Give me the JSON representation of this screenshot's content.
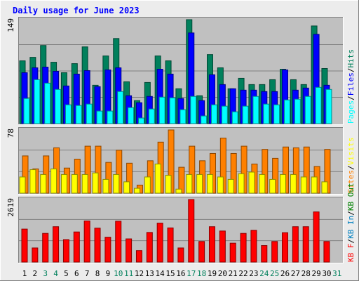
{
  "title": "Daily usage for June 2023",
  "colors": {
    "hits": "#00805c",
    "files": "#0000ff",
    "pages": "#00ffff",
    "visits": "#ffff00",
    "sites": "#ff8000",
    "kbin": "#0080c0",
    "kbout": "#008000",
    "kbf": "#ff0000",
    "weekend_day": "#00805c",
    "weekday": "#000000",
    "title": "#0000ff",
    "panel_bg": "#c0c0c0"
  },
  "chart_data": [
    {
      "type": "bar",
      "panel": "hits-files-pages",
      "axis_max_label": "149",
      "ylim": [
        0,
        149
      ],
      "legend": [
        {
          "text": "Pages",
          "color": "#00ffff"
        },
        {
          "text": "/",
          "color": "#000000"
        },
        {
          "text": "Files",
          "color": "#0000ff"
        },
        {
          "text": "/",
          "color": "#000000"
        },
        {
          "text": "Hits",
          "color": "#00805c"
        }
      ],
      "categories": [
        "1",
        "2",
        "3",
        "4",
        "5",
        "6",
        "7",
        "8",
        "9",
        "10",
        "11",
        "12",
        "13",
        "14",
        "15",
        "16",
        "17",
        "18",
        "19",
        "20",
        "21",
        "22",
        "23",
        "24",
        "25",
        "26",
        "27",
        "28",
        "29",
        "30"
      ],
      "series": [
        {
          "name": "Hits",
          "values": [
            90,
            95,
            112,
            88,
            73,
            86,
            110,
            55,
            97,
            122,
            60,
            33,
            59,
            97,
            90,
            50,
            149,
            40,
            99,
            80,
            50,
            65,
            56,
            56,
            63,
            78,
            63,
            56,
            140,
            79
          ]
        },
        {
          "name": "Files",
          "values": [
            73,
            80,
            81,
            75,
            54,
            71,
            76,
            53,
            77,
            80,
            40,
            30,
            39,
            78,
            71,
            36,
            130,
            33,
            70,
            56,
            50,
            48,
            48,
            46,
            46,
            77,
            48,
            51,
            128,
            55
          ]
        },
        {
          "name": "Pages",
          "values": [
            36,
            63,
            58,
            49,
            27,
            26,
            28,
            18,
            18,
            46,
            23,
            8,
            21,
            38,
            37,
            20,
            39,
            11,
            27,
            25,
            17,
            25,
            39,
            28,
            27,
            34,
            35,
            39,
            52,
            49
          ]
        }
      ]
    },
    {
      "type": "bar",
      "panel": "visits-sites",
      "axis_max_label": "78",
      "ylim": [
        0,
        78
      ],
      "legend": [
        {
          "text": "Sites",
          "color": "#ff8000"
        },
        {
          "text": "/",
          "color": "#000000"
        },
        {
          "text": "Visits",
          "color": "#ffff00"
        }
      ],
      "categories": [
        "1",
        "2",
        "3",
        "4",
        "5",
        "6",
        "7",
        "8",
        "9",
        "10",
        "11",
        "12",
        "13",
        "14",
        "15",
        "16",
        "17",
        "18",
        "19",
        "20",
        "21",
        "22",
        "23",
        "24",
        "25",
        "26",
        "27",
        "28",
        "29",
        "30"
      ],
      "series": [
        {
          "name": "Sites",
          "values": [
            46,
            30,
            46,
            56,
            31,
            42,
            58,
            58,
            38,
            53,
            37,
            10,
            40,
            63,
            78,
            32,
            58,
            40,
            49,
            68,
            49,
            58,
            36,
            54,
            43,
            57,
            56,
            57,
            33,
            54
          ]
        },
        {
          "name": "Visits",
          "values": [
            20,
            29,
            23,
            30,
            23,
            23,
            23,
            25,
            17,
            23,
            14,
            6,
            20,
            36,
            22,
            5,
            23,
            23,
            23,
            20,
            17,
            24,
            26,
            23,
            17,
            23,
            23,
            20,
            20,
            14
          ]
        }
      ]
    },
    {
      "type": "bar",
      "panel": "kb-traffic",
      "axis_max_label": "2619",
      "ylim": [
        0,
        2619
      ],
      "legend": [
        {
          "text": "KB F",
          "color": "#ff0000"
        },
        {
          "text": "/",
          "color": "#000000"
        },
        {
          "text": "KB In",
          "color": "#0080c0"
        },
        {
          "text": "/",
          "color": "#000000"
        },
        {
          "text": "KB Out",
          "color": "#008000"
        }
      ],
      "categories": [
        "1",
        "2",
        "3",
        "4",
        "5",
        "6",
        "7",
        "8",
        "9",
        "10",
        "11",
        "12",
        "13",
        "14",
        "15",
        "16",
        "17",
        "18",
        "19",
        "20",
        "21",
        "22",
        "23",
        "24",
        "25",
        "26",
        "27",
        "28",
        "29",
        "30"
      ],
      "series": [
        {
          "name": "KB F",
          "values": [
            1380,
            590,
            1200,
            1480,
            940,
            1260,
            1720,
            1420,
            1040,
            1710,
            970,
            480,
            1240,
            1630,
            1430,
            590,
            2619,
            860,
            1480,
            1300,
            790,
            1200,
            1330,
            690,
            860,
            1230,
            1480,
            1480,
            2100,
            860
          ]
        }
      ]
    }
  ],
  "x_axis": {
    "days": [
      {
        "label": "1",
        "weekend": false
      },
      {
        "label": "2",
        "weekend": false
      },
      {
        "label": "3",
        "weekend": true
      },
      {
        "label": "4",
        "weekend": true
      },
      {
        "label": "5",
        "weekend": false
      },
      {
        "label": "6",
        "weekend": false
      },
      {
        "label": "7",
        "weekend": false
      },
      {
        "label": "8",
        "weekend": false
      },
      {
        "label": "9",
        "weekend": false
      },
      {
        "label": "10",
        "weekend": true
      },
      {
        "label": "11",
        "weekend": true
      },
      {
        "label": "12",
        "weekend": false
      },
      {
        "label": "13",
        "weekend": false
      },
      {
        "label": "14",
        "weekend": false
      },
      {
        "label": "15",
        "weekend": false
      },
      {
        "label": "16",
        "weekend": false
      },
      {
        "label": "17",
        "weekend": true
      },
      {
        "label": "18",
        "weekend": true
      },
      {
        "label": "19",
        "weekend": false
      },
      {
        "label": "20",
        "weekend": false
      },
      {
        "label": "21",
        "weekend": false
      },
      {
        "label": "22",
        "weekend": false
      },
      {
        "label": "23",
        "weekend": false
      },
      {
        "label": "24",
        "weekend": true
      },
      {
        "label": "25",
        "weekend": true
      },
      {
        "label": "26",
        "weekend": false
      },
      {
        "label": "27",
        "weekend": false
      },
      {
        "label": "28",
        "weekend": false
      },
      {
        "label": "29",
        "weekend": false
      },
      {
        "label": "30",
        "weekend": false
      },
      {
        "label": "31",
        "weekend": true
      }
    ]
  }
}
